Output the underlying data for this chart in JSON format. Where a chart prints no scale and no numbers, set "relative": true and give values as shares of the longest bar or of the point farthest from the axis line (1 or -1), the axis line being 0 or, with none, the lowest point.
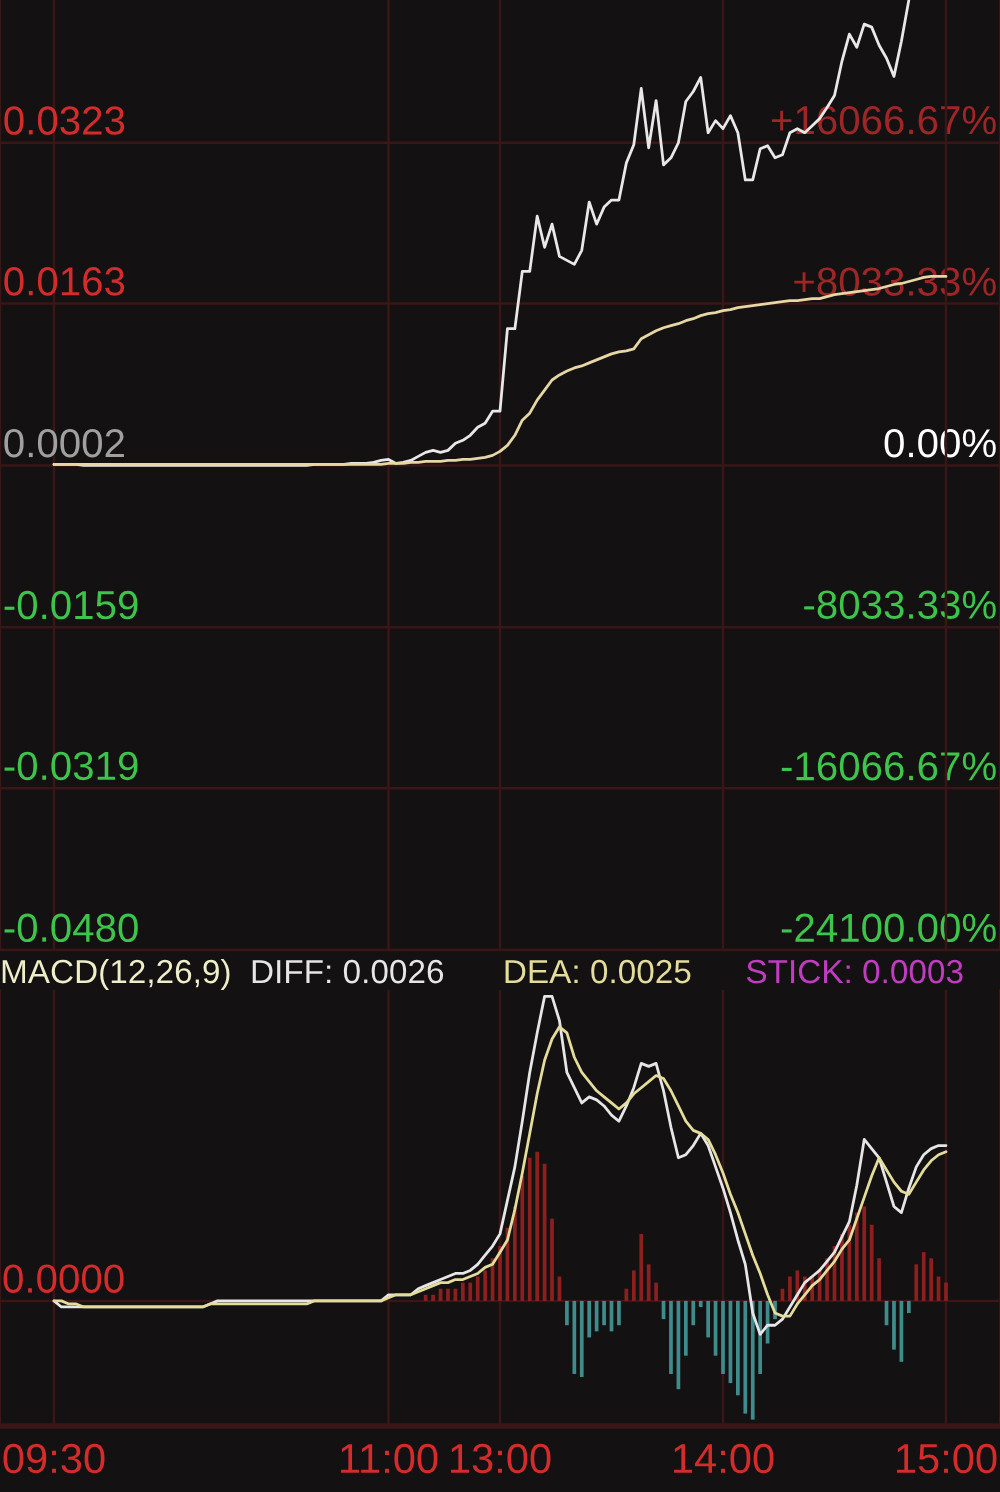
{
  "chart_data": [
    {
      "type": "line",
      "categories": [
        null,
        null,
        null,
        null,
        null,
        null,
        null,
        null,
        null,
        null,
        null,
        null,
        null,
        null,
        null,
        null,
        null,
        null,
        null,
        null,
        null,
        null,
        null,
        null,
        null,
        null,
        null,
        null,
        null,
        null,
        null,
        null,
        null,
        null,
        null,
        null,
        null,
        null,
        null,
        null,
        null,
        null,
        null,
        null,
        null,
        null,
        null,
        null,
        null,
        null,
        null,
        null,
        null,
        null,
        null,
        null,
        null,
        null,
        null,
        null,
        null,
        null,
        null,
        null,
        null,
        null,
        null,
        null,
        null,
        null,
        null,
        null,
        null,
        null,
        null,
        null,
        null,
        null,
        null,
        null,
        null,
        null,
        null,
        null,
        null,
        null,
        null,
        null,
        null,
        null,
        null,
        null,
        null,
        null,
        null,
        null,
        null,
        null,
        null,
        null,
        null,
        null,
        null,
        null,
        null,
        null,
        null,
        null,
        null,
        null,
        null,
        null,
        null,
        null,
        null,
        null,
        null,
        null,
        null,
        null,
        null
      ],
      "series": [
        {
          "color": "#e8e8e8",
          "values": [
            0.0003,
            0.0003,
            0.0003,
            0.0003,
            0.0002,
            0.0002,
            0.0002,
            0.0002,
            0.0002,
            0.0002,
            0.0002,
            0.0002,
            0.0002,
            0.0002,
            0.0002,
            0.0002,
            0.0002,
            0.0002,
            0.0002,
            0.0002,
            0.0002,
            0.0002,
            0.0002,
            0.0002,
            0.0002,
            0.0002,
            0.0002,
            0.0002,
            0.0002,
            0.0002,
            0.0002,
            0.0002,
            0.0002,
            0.0002,
            0.0002,
            0.0003,
            0.0003,
            0.0003,
            0.0003,
            0.0003,
            0.0004,
            0.0004,
            0.0004,
            0.0005,
            0.0007,
            0.0008,
            0.0004,
            0.0005,
            0.0007,
            0.0011,
            0.0015,
            0.0017,
            0.0015,
            0.0017,
            0.0024,
            0.0027,
            0.0032,
            0.004,
            0.0044,
            0.0056,
            0.0056,
            0.0138,
            0.0138,
            0.0195,
            0.0195,
            0.025,
            0.0219,
            0.0242,
            0.021,
            0.0206,
            0.0202,
            0.0216,
            0.0264,
            0.0242,
            0.0259,
            0.0266,
            0.0266,
            0.0303,
            0.0321,
            0.0377,
            0.0318,
            0.0365,
            0.0301,
            0.0308,
            0.0323,
            0.0364,
            0.0374,
            0.0388,
            0.0333,
            0.0345,
            0.0337,
            0.035,
            0.0333,
            0.0286,
            0.0286,
            0.0317,
            0.032,
            0.0308,
            0.0311,
            0.0333,
            0.0337,
            0.0333,
            0.034,
            0.0347,
            0.0358,
            0.037,
            0.0404,
            0.0431,
            0.0418,
            0.0441,
            0.0438,
            0.042,
            0.0407,
            0.0389,
            0.0424,
            0.0465,
            null,
            null,
            null,
            null,
            null
          ]
        },
        {
          "color": "#e6d7a4",
          "values": [
            0.0003,
            0.0003,
            0.0003,
            0.0003,
            0.0003,
            0.0003,
            0.0003,
            0.0003,
            0.0003,
            0.0003,
            0.0003,
            0.0003,
            0.0003,
            0.0003,
            0.0003,
            0.0003,
            0.0003,
            0.0003,
            0.0003,
            0.0003,
            0.0003,
            0.0003,
            0.0003,
            0.0003,
            0.0003,
            0.0003,
            0.0003,
            0.0003,
            0.0003,
            0.0003,
            0.0003,
            0.0003,
            0.0003,
            0.0003,
            0.0003,
            0.0003,
            0.0003,
            0.0003,
            0.0003,
            0.0003,
            0.0003,
            0.0003,
            0.0003,
            0.0003,
            0.0003,
            0.0004,
            0.0004,
            0.0004,
            0.0005,
            0.0005,
            0.0006,
            0.0006,
            0.0006,
            0.0007,
            0.0007,
            0.0008,
            0.0008,
            0.0009,
            0.001,
            0.0012,
            0.0016,
            0.0022,
            0.0032,
            0.0047,
            0.0054,
            0.0067,
            0.0077,
            0.0087,
            0.0092,
            0.0096,
            0.0099,
            0.0101,
            0.0104,
            0.0107,
            0.011,
            0.0113,
            0.0115,
            0.0116,
            0.0118,
            0.0128,
            0.0132,
            0.0136,
            0.0139,
            0.0141,
            0.0143,
            0.0146,
            0.0148,
            0.0151,
            0.0153,
            0.0154,
            0.0156,
            0.0157,
            0.0159,
            0.016,
            0.0161,
            0.0162,
            0.0163,
            0.0164,
            0.0165,
            0.0166,
            0.0166,
            0.0167,
            0.0168,
            0.0168,
            0.017,
            0.0172,
            0.0173,
            0.0174,
            0.0175,
            0.0176,
            0.0177,
            0.0178,
            0.018,
            0.0182,
            0.0183,
            0.0185,
            0.0187,
            0.0189,
            0.019,
            0.019,
            0.019
          ]
        }
      ],
      "ylim": [
        -0.048,
        0.0465
      ],
      "yticks": [
        {
          "value": -0.048,
          "label": "-0.0480"
        },
        -0.0319,
        -0.0159,
        0.0002,
        0.0163,
        0.0323
      ],
      "y2lim": [
        -24100,
        23150
      ],
      "y2ticks": [
        {
          "value": -24100,
          "label": "-24100.00%"
        },
        {
          "value": -16066.67,
          "label": "-16066.67%"
        },
        {
          "value": -8033.33,
          "label": "-8033.33%"
        },
        {
          "value": 0,
          "label": "0.00%"
        },
        {
          "value": 8033.33,
          "label": "+8033.33%"
        },
        {
          "value": 16066.67,
          "label": "+16066.67%"
        }
      ],
      "grid": true,
      "tick_labels": "y"
    },
    {
      "type": "line",
      "title": "MACD(12,26,9)",
      "relative": true,
      "categories": [
        "09:30",
        null,
        null,
        null,
        null,
        null,
        null,
        null,
        null,
        null,
        null,
        null,
        null,
        null,
        null,
        null,
        null,
        null,
        null,
        null,
        null,
        null,
        null,
        null,
        null,
        null,
        null,
        null,
        null,
        null,
        null,
        null,
        null,
        null,
        null,
        null,
        null,
        null,
        null,
        null,
        null,
        null,
        null,
        null,
        null,
        "11:00",
        null,
        null,
        null,
        null,
        null,
        null,
        null,
        null,
        null,
        null,
        null,
        null,
        null,
        null,
        "13:00",
        null,
        null,
        null,
        null,
        null,
        null,
        null,
        null,
        null,
        null,
        null,
        null,
        null,
        null,
        null,
        null,
        null,
        null,
        null,
        null,
        null,
        null,
        null,
        null,
        null,
        null,
        null,
        null,
        null,
        "14:00",
        null,
        null,
        null,
        null,
        null,
        null,
        null,
        null,
        null,
        null,
        null,
        null,
        null,
        null,
        null,
        null,
        null,
        null,
        null,
        null,
        null,
        null,
        null,
        null,
        null,
        null,
        null,
        null,
        null,
        "15:00"
      ],
      "series": [
        {
          "name": "DIFF: 0.0026",
          "color": "#e6e6e6",
          "values": [
            0,
            -0.02,
            -0.02,
            -0.02,
            -0.02,
            -0.02,
            -0.02,
            -0.02,
            -0.02,
            -0.02,
            -0.02,
            -0.02,
            -0.02,
            -0.02,
            -0.02,
            -0.02,
            -0.02,
            -0.02,
            -0.02,
            -0.02,
            -0.02,
            -0.01,
            0,
            0,
            0,
            0,
            0,
            0,
            0,
            0,
            0,
            0,
            0,
            0,
            0,
            0,
            0,
            0,
            0,
            0,
            0,
            0,
            0,
            0,
            0,
            0.02,
            0.02,
            0.02,
            0.02,
            0.04,
            0.05,
            0.06,
            0.07,
            0.08,
            0.09,
            0.09,
            0.1,
            0.12,
            0.15,
            0.18,
            0.22,
            0.33,
            0.44,
            0.59,
            0.75,
            0.88,
            1,
            1,
            0.92,
            0.75,
            0.7,
            0.65,
            0.67,
            0.66,
            0.64,
            0.61,
            0.59,
            0.64,
            0.7,
            0.78,
            0.77,
            0.78,
            0.69,
            0.57,
            0.47,
            0.48,
            0.51,
            0.55,
            0.51,
            0.44,
            0.37,
            0.29,
            0.2,
            0.12,
            -0.04,
            -0.11,
            -0.08,
            -0.08,
            -0.06,
            -0.02,
            0.02,
            0.06,
            0.08,
            0.1,
            0.13,
            0.16,
            0.21,
            0.26,
            0.38,
            0.53,
            0.5,
            0.47,
            0.39,
            0.31,
            0.29,
            0.37,
            0.44,
            0.48,
            0.5,
            0.51,
            0.51
          ]
        },
        {
          "name": "DEA: 0.0025",
          "color": "#e4dc9a",
          "values": [
            0,
            0,
            -0.01,
            -0.01,
            -0.02,
            -0.02,
            -0.02,
            -0.02,
            -0.02,
            -0.02,
            -0.02,
            -0.02,
            -0.02,
            -0.02,
            -0.02,
            -0.02,
            -0.02,
            -0.02,
            -0.02,
            -0.02,
            -0.02,
            -0.01,
            -0.01,
            -0.01,
            -0.01,
            -0.01,
            -0.01,
            -0.01,
            -0.01,
            -0.01,
            -0.01,
            -0.01,
            -0.01,
            -0.01,
            -0.01,
            0,
            0,
            0,
            0,
            0,
            0,
            0,
            0,
            0,
            0,
            0.01,
            0.02,
            0.02,
            0.02,
            0.03,
            0.04,
            0.05,
            0.06,
            0.06,
            0.07,
            0.07,
            0.08,
            0.09,
            0.11,
            0.12,
            0.16,
            0.2,
            0.3,
            0.42,
            0.55,
            0.68,
            0.79,
            0.86,
            0.9,
            0.88,
            0.8,
            0.75,
            0.72,
            0.69,
            0.67,
            0.65,
            0.63,
            0.65,
            0.68,
            0.7,
            0.72,
            0.74,
            0.73,
            0.69,
            0.64,
            0.59,
            0.56,
            0.55,
            0.53,
            0.48,
            0.42,
            0.35,
            0.29,
            0.22,
            0.15,
            0.09,
            0.02,
            -0.04,
            -0.05,
            -0.05,
            -0.01,
            0.02,
            0.05,
            0.07,
            0.1,
            0.13,
            0.17,
            0.2,
            0.27,
            0.34,
            0.41,
            0.47,
            0.43,
            0.39,
            0.36,
            0.35,
            0.39,
            0.43,
            0.46,
            0.48,
            0.49
          ]
        },
        {
          "type": "bar",
          "values": [
            null,
            null,
            null,
            null,
            null,
            null,
            null,
            null,
            null,
            null,
            null,
            null,
            null,
            null,
            null,
            null,
            null,
            null,
            null,
            null,
            null,
            null,
            null,
            null,
            null,
            null,
            null,
            null,
            null,
            null,
            null,
            null,
            null,
            null,
            null,
            null,
            null,
            null,
            null,
            null,
            null,
            null,
            null,
            null,
            null,
            null,
            null,
            null,
            null,
            null,
            0.02,
            0.02,
            0.04,
            0.04,
            0.04,
            0.06,
            0.06,
            0.08,
            0.1,
            0.14,
            0.18,
            0.24,
            0.31,
            0.41,
            0.47,
            0.49,
            0.45,
            0.27,
            0.08,
            -0.08,
            -0.24,
            -0.25,
            -0.12,
            -0.1,
            -0.08,
            -0.1,
            -0.08,
            0.04,
            0.1,
            0.22,
            0.12,
            0.06,
            -0.06,
            -0.24,
            -0.29,
            -0.18,
            -0.08,
            -0.02,
            -0.12,
            -0.18,
            -0.24,
            -0.27,
            -0.31,
            -0.37,
            -0.39,
            -0.24,
            -0.14,
            -0.06,
            0.04,
            0.08,
            0.1,
            0.08,
            0.08,
            0.1,
            0.14,
            0.18,
            0.22,
            0.25,
            0.29,
            0.31,
            0.25,
            0.14,
            -0.08,
            -0.16,
            -0.2,
            -0.04,
            0.12,
            0.16,
            0.14,
            0.08,
            0.06
          ],
          "colors": [
            null,
            null,
            null,
            null,
            null,
            null,
            null,
            null,
            null,
            null,
            null,
            null,
            null,
            null,
            null,
            null,
            null,
            null,
            null,
            null,
            null,
            null,
            null,
            null,
            null,
            null,
            null,
            null,
            null,
            null,
            null,
            null,
            null,
            null,
            null,
            null,
            null,
            null,
            null,
            null,
            null,
            null,
            null,
            null,
            null,
            null,
            null,
            null,
            null,
            null,
            "#8e1f1f",
            "#8e1f1f",
            "#8e1f1f",
            "#8e1f1f",
            "#8e1f1f",
            "#8e1f1f",
            "#8e1f1f",
            "#8e1f1f",
            "#8e1f1f",
            "#8e1f1f",
            "#8e1f1f",
            "#8e1f1f",
            "#8e1f1f",
            "#8e1f1f",
            "#8e1f1f",
            "#8e1f1f",
            "#8e1f1f",
            "#8e1f1f",
            "#8e1f1f",
            "#3f8c8c",
            "#3f8c8c",
            "#3f8c8c",
            "#3f8c8c",
            "#3f8c8c",
            "#3f8c8c",
            "#3f8c8c",
            "#3f8c8c",
            "#8e1f1f",
            "#8e1f1f",
            "#8e1f1f",
            "#8e1f1f",
            "#8e1f1f",
            "#3f8c8c",
            "#3f8c8c",
            "#3f8c8c",
            "#3f8c8c",
            "#3f8c8c",
            "#3f8c8c",
            "#3f8c8c",
            "#3f8c8c",
            "#3f8c8c",
            "#3f8c8c",
            "#3f8c8c",
            "#3f8c8c",
            "#3f8c8c",
            "#3f8c8c",
            "#3f8c8c",
            "#3f8c8c",
            "#8e1f1f",
            "#8e1f1f",
            "#8e1f1f",
            "#8e1f1f",
            "#8e1f1f",
            "#8e1f1f",
            "#8e1f1f",
            "#8e1f1f",
            "#8e1f1f",
            "#8e1f1f",
            "#8e1f1f",
            "#8e1f1f",
            "#8e1f1f",
            "#8e1f1f",
            "#3f8c8c",
            "#3f8c8c",
            "#3f8c8c",
            "#3f8c8c",
            "#8e1f1f",
            "#8e1f1f",
            "#8e1f1f",
            "#8e1f1f",
            "#8e1f1f"
          ]
        }
      ],
      "annotations": [
        {
          "text": "0.0000",
          "y": 0
        },
        "STICK: 0.0003"
      ],
      "grid": "x",
      "legend": "top"
    }
  ]
}
